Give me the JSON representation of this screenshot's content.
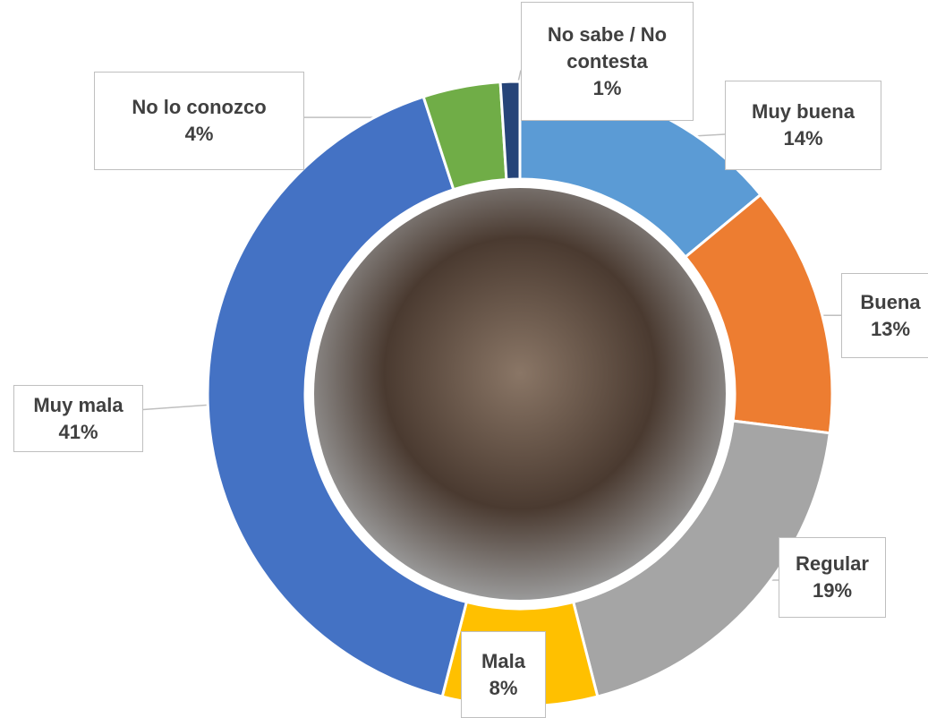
{
  "chart_data": {
    "type": "donut",
    "categories": [
      "Muy buena",
      "Buena",
      "Regular",
      "Mala",
      "Muy mala",
      "No lo conozco",
      "No sabe / No contesta"
    ],
    "values": [
      14,
      13,
      19,
      8,
      41,
      4,
      1
    ],
    "value_labels": [
      "14%",
      "13%",
      "19%",
      "8%",
      "41%",
      "4%",
      "1%"
    ],
    "colors": [
      "#5b9bd5",
      "#ed7d31",
      "#a5a5a5",
      "#ffc000",
      "#4472c4",
      "#70ad47",
      "#264478"
    ]
  }
}
